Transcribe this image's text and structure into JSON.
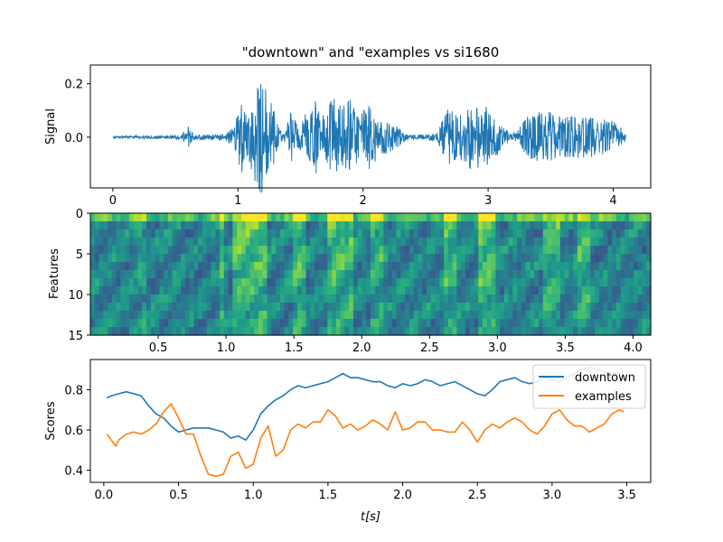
{
  "figure": {
    "title": "\"downtown\" and \"examples vs si1680"
  },
  "chart_data": [
    {
      "type": "line",
      "panel": "signal",
      "title": "\"downtown\" and \"examples vs si1680",
      "xlabel": "",
      "ylabel": "Signal",
      "xlim": [
        -0.18,
        4.3
      ],
      "ylim": [
        -0.19,
        0.27
      ],
      "xticks": [
        0,
        1,
        2,
        3,
        4
      ],
      "yticks": [
        0.2,
        0.0
      ],
      "ytick_labels": [
        "0.2",
        "0.0"
      ],
      "color": "#1f77b4",
      "duration": 4.1,
      "envelope": [
        [
          0.0,
          0.004
        ],
        [
          0.3,
          0.006
        ],
        [
          0.55,
          0.008
        ],
        [
          0.6,
          0.05
        ],
        [
          0.62,
          0.025
        ],
        [
          0.65,
          0.01
        ],
        [
          0.9,
          0.012
        ],
        [
          0.97,
          0.04
        ],
        [
          1.03,
          0.14
        ],
        [
          1.08,
          0.08
        ],
        [
          1.13,
          0.16
        ],
        [
          1.18,
          0.24
        ],
        [
          1.23,
          0.18
        ],
        [
          1.28,
          0.12
        ],
        [
          1.33,
          0.03
        ],
        [
          1.38,
          0.02
        ],
        [
          1.42,
          0.1
        ],
        [
          1.48,
          0.04
        ],
        [
          1.55,
          0.1
        ],
        [
          1.62,
          0.14
        ],
        [
          1.7,
          0.08
        ],
        [
          1.76,
          0.16
        ],
        [
          1.82,
          0.12
        ],
        [
          1.9,
          0.16
        ],
        [
          1.96,
          0.09
        ],
        [
          2.05,
          0.12
        ],
        [
          2.15,
          0.07
        ],
        [
          2.25,
          0.05
        ],
        [
          2.35,
          0.01
        ],
        [
          2.5,
          0.01
        ],
        [
          2.6,
          0.02
        ],
        [
          2.68,
          0.12
        ],
        [
          2.76,
          0.08
        ],
        [
          2.85,
          0.12
        ],
        [
          2.94,
          0.13
        ],
        [
          3.02,
          0.1
        ],
        [
          3.1,
          0.05
        ],
        [
          3.18,
          0.015
        ],
        [
          3.23,
          0.02
        ],
        [
          3.3,
          0.08
        ],
        [
          3.45,
          0.1
        ],
        [
          3.6,
          0.08
        ],
        [
          3.75,
          0.08
        ],
        [
          3.9,
          0.07
        ],
        [
          4.0,
          0.06
        ],
        [
          4.08,
          0.03
        ],
        [
          4.12,
          0.0
        ]
      ]
    },
    {
      "type": "heatmap",
      "panel": "features",
      "xlabel": "",
      "ylabel": "Features",
      "xlim": [
        0.0,
        4.13
      ],
      "ylim": [
        15,
        0
      ],
      "xticks": [
        0.5,
        1.0,
        1.5,
        2.0,
        2.5,
        3.0,
        3.5,
        4.0
      ],
      "xtick_labels": [
        "0.5",
        "1.0",
        "1.5",
        "2.0",
        "2.5",
        "3.0",
        "3.5",
        "4.0"
      ],
      "yticks": [
        0,
        5,
        10,
        15
      ],
      "rows": 15,
      "columns": 130,
      "colormap": "viridis",
      "bright_bands": [
        [
          0.35,
          0.4,
          0.35
        ],
        [
          0.95,
          1.0,
          0.8
        ],
        [
          1.05,
          1.3,
          0.9
        ],
        [
          1.5,
          1.6,
          0.7
        ],
        [
          1.75,
          1.95,
          0.75
        ],
        [
          2.05,
          2.15,
          0.6
        ],
        [
          2.6,
          2.7,
          0.75
        ],
        [
          2.85,
          3.0,
          0.9
        ],
        [
          3.35,
          3.45,
          0.7
        ],
        [
          3.6,
          3.7,
          0.65
        ]
      ]
    },
    {
      "type": "line",
      "panel": "scores",
      "xlabel": "t[s]",
      "ylabel": "Scores",
      "xlim": [
        -0.09,
        3.66
      ],
      "ylim": [
        0.34,
        0.95
      ],
      "xticks": [
        0.0,
        0.5,
        1.0,
        1.5,
        2.0,
        2.5,
        3.0,
        3.5
      ],
      "xtick_labels": [
        "0.0",
        "0.5",
        "1.0",
        "1.5",
        "2.0",
        "2.5",
        "3.0",
        "3.5"
      ],
      "yticks": [
        0.4,
        0.6,
        0.8
      ],
      "ytick_labels": [
        "0.4",
        "0.6",
        "0.8"
      ],
      "legend": "top-right",
      "series": [
        {
          "name": "downtown",
          "color": "#1f77b4",
          "x": [
            0.02,
            0.05,
            0.1,
            0.15,
            0.2,
            0.25,
            0.3,
            0.35,
            0.4,
            0.45,
            0.5,
            0.55,
            0.6,
            0.65,
            0.7,
            0.75,
            0.8,
            0.85,
            0.9,
            0.95,
            1.0,
            1.05,
            1.1,
            1.15,
            1.2,
            1.25,
            1.3,
            1.35,
            1.4,
            1.45,
            1.5,
            1.55,
            1.6,
            1.65,
            1.7,
            1.75,
            1.8,
            1.85,
            1.9,
            1.95,
            2.0,
            2.05,
            2.1,
            2.15,
            2.2,
            2.25,
            2.3,
            2.35,
            2.4,
            2.45,
            2.5,
            2.55,
            2.6,
            2.65,
            2.7,
            2.75,
            2.8,
            2.85,
            2.9,
            2.95,
            3.0,
            3.05,
            3.1,
            3.15,
            3.2,
            3.25,
            3.3,
            3.35,
            3.4,
            3.45,
            3.48
          ],
          "values": [
            0.76,
            0.77,
            0.78,
            0.79,
            0.78,
            0.77,
            0.72,
            0.68,
            0.66,
            0.62,
            0.59,
            0.6,
            0.61,
            0.61,
            0.61,
            0.6,
            0.59,
            0.56,
            0.57,
            0.55,
            0.6,
            0.68,
            0.72,
            0.75,
            0.77,
            0.8,
            0.82,
            0.81,
            0.82,
            0.83,
            0.84,
            0.86,
            0.88,
            0.86,
            0.86,
            0.85,
            0.84,
            0.84,
            0.82,
            0.81,
            0.83,
            0.82,
            0.83,
            0.85,
            0.84,
            0.82,
            0.83,
            0.84,
            0.82,
            0.8,
            0.78,
            0.77,
            0.8,
            0.84,
            0.85,
            0.86,
            0.84,
            0.83,
            0.84,
            0.86,
            0.85,
            0.84,
            0.86,
            0.88,
            0.9,
            0.91,
            0.9,
            0.89,
            0.88,
            0.88,
            0.89
          ]
        },
        {
          "name": "examples",
          "color": "#ff7f0e",
          "x": [
            0.02,
            0.05,
            0.08,
            0.1,
            0.15,
            0.2,
            0.25,
            0.3,
            0.35,
            0.4,
            0.45,
            0.5,
            0.55,
            0.6,
            0.65,
            0.7,
            0.75,
            0.8,
            0.85,
            0.9,
            0.95,
            1.0,
            1.05,
            1.1,
            1.15,
            1.2,
            1.25,
            1.3,
            1.35,
            1.4,
            1.45,
            1.5,
            1.55,
            1.6,
            1.65,
            1.7,
            1.75,
            1.8,
            1.85,
            1.9,
            1.95,
            2.0,
            2.05,
            2.1,
            2.15,
            2.2,
            2.25,
            2.3,
            2.35,
            2.4,
            2.45,
            2.5,
            2.55,
            2.6,
            2.65,
            2.7,
            2.75,
            2.8,
            2.85,
            2.9,
            2.95,
            3.0,
            3.05,
            3.1,
            3.15,
            3.2,
            3.25,
            3.3,
            3.35,
            3.4,
            3.45,
            3.48
          ],
          "values": [
            0.58,
            0.55,
            0.52,
            0.55,
            0.58,
            0.59,
            0.58,
            0.6,
            0.63,
            0.69,
            0.73,
            0.66,
            0.58,
            0.58,
            0.47,
            0.38,
            0.37,
            0.38,
            0.47,
            0.49,
            0.41,
            0.43,
            0.56,
            0.62,
            0.47,
            0.5,
            0.6,
            0.63,
            0.61,
            0.64,
            0.64,
            0.7,
            0.67,
            0.61,
            0.63,
            0.6,
            0.62,
            0.65,
            0.63,
            0.6,
            0.69,
            0.6,
            0.61,
            0.64,
            0.64,
            0.6,
            0.6,
            0.59,
            0.59,
            0.64,
            0.6,
            0.54,
            0.6,
            0.63,
            0.61,
            0.64,
            0.66,
            0.64,
            0.6,
            0.58,
            0.62,
            0.68,
            0.7,
            0.65,
            0.62,
            0.62,
            0.59,
            0.61,
            0.63,
            0.68,
            0.7,
            0.69
          ]
        }
      ]
    }
  ]
}
